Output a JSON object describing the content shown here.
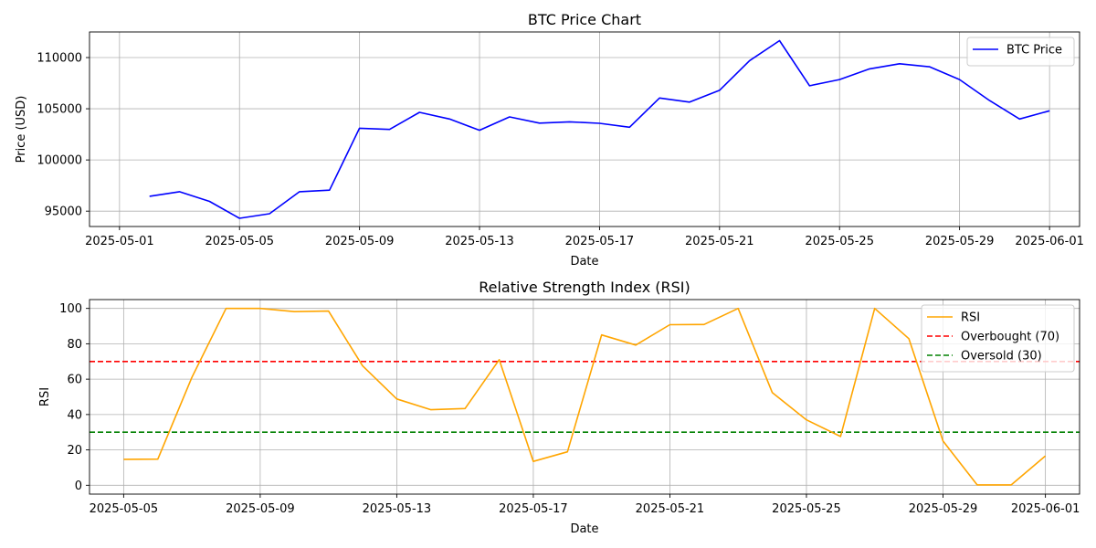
{
  "chart_data": [
    {
      "type": "line",
      "title": "BTC Price Chart",
      "xlabel": "Date",
      "ylabel": "Price (USD)",
      "x_range": [
        "2025-04-30",
        "2025-06-02"
      ],
      "ylim": [
        93500,
        112500
      ],
      "x_ticks": [
        "2025-05-01",
        "2025-05-05",
        "2025-05-09",
        "2025-05-13",
        "2025-05-17",
        "2025-05-21",
        "2025-05-25",
        "2025-05-29",
        "2025-06-01"
      ],
      "y_ticks": [
        95000,
        100000,
        105000,
        110000
      ],
      "grid": true,
      "legend_position": "top-right",
      "x": [
        "2025-05-02",
        "2025-05-03",
        "2025-05-04",
        "2025-05-05",
        "2025-05-06",
        "2025-05-07",
        "2025-05-08",
        "2025-05-09",
        "2025-05-10",
        "2025-05-11",
        "2025-05-12",
        "2025-05-13",
        "2025-05-14",
        "2025-05-15",
        "2025-05-16",
        "2025-05-17",
        "2025-05-18",
        "2025-05-19",
        "2025-05-20",
        "2025-05-21",
        "2025-05-22",
        "2025-05-23",
        "2025-05-24",
        "2025-05-25",
        "2025-05-26",
        "2025-05-27",
        "2025-05-28",
        "2025-05-29",
        "2025-05-30",
        "2025-05-31",
        "2025-06-01"
      ],
      "series": [
        {
          "name": "BTC Price",
          "color": "#0000ff",
          "values": [
            96450,
            96900,
            95950,
            94300,
            94750,
            96900,
            97050,
            103100,
            102980,
            104650,
            104000,
            102900,
            104200,
            103600,
            103720,
            103580,
            103200,
            106050,
            105650,
            106800,
            109700,
            111650,
            107250,
            107850,
            108900,
            109400,
            109100,
            107850,
            105800,
            104000,
            104800
          ]
        }
      ]
    },
    {
      "type": "line",
      "title": "Relative Strength Index (RSI)",
      "xlabel": "Date",
      "ylabel": "RSI",
      "x_range": [
        "2025-05-04",
        "2025-06-02"
      ],
      "ylim": [
        -5,
        105
      ],
      "x_ticks": [
        "2025-05-05",
        "2025-05-09",
        "2025-05-13",
        "2025-05-17",
        "2025-05-21",
        "2025-05-25",
        "2025-05-29",
        "2025-06-01"
      ],
      "y_ticks": [
        0,
        20,
        40,
        60,
        80,
        100
      ],
      "grid": true,
      "legend_position": "top-right",
      "x": [
        "2025-05-05",
        "2025-05-06",
        "2025-05-07",
        "2025-05-08",
        "2025-05-09",
        "2025-05-10",
        "2025-05-11",
        "2025-05-12",
        "2025-05-13",
        "2025-05-14",
        "2025-05-15",
        "2025-05-16",
        "2025-05-17",
        "2025-05-18",
        "2025-05-19",
        "2025-05-20",
        "2025-05-21",
        "2025-05-22",
        "2025-05-23",
        "2025-05-24",
        "2025-05-25",
        "2025-05-26",
        "2025-05-27",
        "2025-05-28",
        "2025-05-29",
        "2025-05-30",
        "2025-05-31",
        "2025-06-01"
      ],
      "series": [
        {
          "name": "RSI",
          "color": "#ffa500",
          "values": [
            14.7,
            14.8,
            61,
            100,
            100,
            98.2,
            98.5,
            67.5,
            48.8,
            42.7,
            43.4,
            71,
            13.5,
            18.9,
            85,
            79.3,
            90.8,
            90.9,
            100,
            52.4,
            37,
            27.6,
            100,
            82.9,
            25,
            0.2,
            0.2,
            16.6
          ]
        }
      ],
      "reference_lines": [
        {
          "name": "Overbought (70)",
          "y": 70,
          "color": "#ff0000",
          "style": "dashed"
        },
        {
          "name": "Oversold (30)",
          "y": 30,
          "color": "#008000",
          "style": "dashed"
        }
      ]
    }
  ]
}
